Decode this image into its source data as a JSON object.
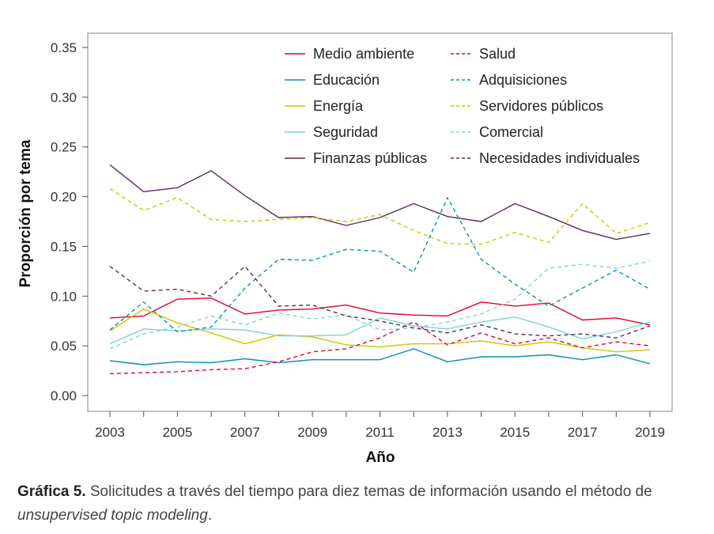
{
  "chart_data": {
    "type": "line",
    "xlabel": "Año",
    "ylabel": "Proporción por tema",
    "x": [
      2003,
      2004,
      2005,
      2006,
      2007,
      2008,
      2009,
      2010,
      2011,
      2012,
      2013,
      2014,
      2015,
      2016,
      2017,
      2018,
      2019
    ],
    "xticks": [
      "2003",
      "2005",
      "2007",
      "2009",
      "2011",
      "2013",
      "2015",
      "2017",
      "2019"
    ],
    "ylim": [
      0,
      0.35
    ],
    "yticks": [
      "0.00",
      "0.05",
      "0.10",
      "0.15",
      "0.20",
      "0.25",
      "0.30",
      "0.35"
    ],
    "grid": false,
    "legend_position": "top-right",
    "series": [
      {
        "name": "Medio ambiente",
        "color": "#e4002b",
        "dash": false,
        "values": [
          0.078,
          0.08,
          0.097,
          0.098,
          0.082,
          0.086,
          0.087,
          0.091,
          0.083,
          0.081,
          0.08,
          0.094,
          0.09,
          0.093,
          0.076,
          0.078,
          0.071
        ]
      },
      {
        "name": "Educación",
        "color": "#0a8fb5",
        "dash": false,
        "values": [
          0.035,
          0.031,
          0.034,
          0.033,
          0.037,
          0.033,
          0.036,
          0.036,
          0.036,
          0.047,
          0.034,
          0.039,
          0.039,
          0.041,
          0.036,
          0.041,
          0.032
        ]
      },
      {
        "name": "Energía",
        "color": "#c8c800",
        "dash": false,
        "values": [
          0.065,
          0.087,
          0.073,
          0.063,
          0.052,
          0.061,
          0.059,
          0.051,
          0.049,
          0.052,
          0.052,
          0.055,
          0.05,
          0.054,
          0.048,
          0.044,
          0.046
        ]
      },
      {
        "name": "Seguridad",
        "color": "#7ed3d8",
        "dash": false,
        "values": [
          0.052,
          0.067,
          0.065,
          0.067,
          0.066,
          0.06,
          0.06,
          0.061,
          0.078,
          0.07,
          0.067,
          0.074,
          0.079,
          0.069,
          0.057,
          0.064,
          0.074
        ]
      },
      {
        "name": "Finanzas públicas",
        "color": "#5a2d5e",
        "dash": false,
        "values": [
          0.232,
          0.205,
          0.209,
          0.226,
          0.201,
          0.179,
          0.18,
          0.171,
          0.179,
          0.193,
          0.18,
          0.175,
          0.193,
          0.18,
          0.166,
          0.157,
          0.163
        ]
      },
      {
        "name": "Salud",
        "color": "#e4002b",
        "dash": true,
        "values": [
          0.022,
          0.023,
          0.024,
          0.026,
          0.027,
          0.034,
          0.044,
          0.047,
          0.058,
          0.074,
          0.051,
          0.063,
          0.052,
          0.058,
          0.048,
          0.054,
          0.05
        ]
      },
      {
        "name": "Adquisiciones",
        "color": "#0a8fb5",
        "dash": true,
        "values": [
          0.066,
          0.094,
          0.064,
          0.069,
          0.108,
          0.137,
          0.136,
          0.147,
          0.145,
          0.124,
          0.199,
          0.137,
          0.112,
          0.09,
          0.108,
          0.126,
          0.107
        ]
      },
      {
        "name": "Servidores públicos",
        "color": "#c8c800",
        "dash": true,
        "values": [
          0.208,
          0.186,
          0.199,
          0.177,
          0.175,
          0.177,
          0.179,
          0.175,
          0.182,
          0.166,
          0.153,
          0.152,
          0.164,
          0.154,
          0.193,
          0.163,
          0.174
        ]
      },
      {
        "name": "Comercial",
        "color": "#7ed3d8",
        "dash": true,
        "values": [
          0.047,
          0.062,
          0.069,
          0.08,
          0.071,
          0.083,
          0.077,
          0.081,
          0.066,
          0.068,
          0.074,
          0.082,
          0.097,
          0.128,
          0.132,
          0.128,
          0.135
        ]
      },
      {
        "name": "Necesidades individuales",
        "color": "#5a2d5e",
        "dash": true,
        "values": [
          0.13,
          0.105,
          0.107,
          0.1,
          0.13,
          0.09,
          0.091,
          0.08,
          0.075,
          0.068,
          0.063,
          0.071,
          0.062,
          0.06,
          0.062,
          0.058,
          0.07
        ]
      }
    ]
  },
  "caption": {
    "label": "Gráfica 5.",
    "text": " Solicitudes a través del tiempo para diez temas de información usando el método de ",
    "emphasis": "unsupervised topic modeling",
    "end": "."
  }
}
